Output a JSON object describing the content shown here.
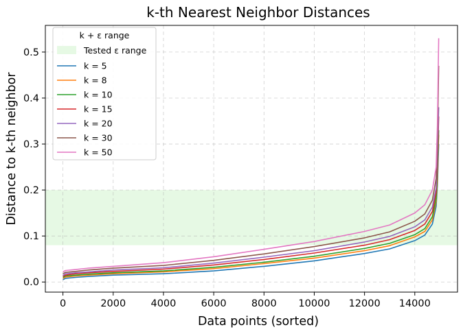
{
  "chart_data": {
    "type": "line",
    "title": "k-th Nearest Neighbor Distances",
    "xlabel": "Data points (sorted)",
    "ylabel": "Distance to k-th neighbor",
    "xlim": [
      -700,
      15700
    ],
    "ylim": [
      -0.022,
      0.558
    ],
    "xticks": [
      0,
      2000,
      4000,
      6000,
      8000,
      10000,
      12000,
      14000
    ],
    "yticks": [
      0.0,
      0.1,
      0.2,
      0.3,
      0.4,
      0.5
    ],
    "ytick_labels": [
      "0.0",
      "0.1",
      "0.2",
      "0.3",
      "0.4",
      "0.5"
    ],
    "grid": true,
    "legend_title": "k + ε range",
    "legend_position": "top-left",
    "band": {
      "name": "Tested ε range",
      "y_range": [
        0.08,
        0.2
      ],
      "color": "#e6f9e4"
    },
    "series": [
      {
        "name": "k = 5",
        "color": "#1f77b4",
        "x": [
          0,
          100,
          500,
          1000,
          2000,
          4000,
          6000,
          8000,
          10000,
          12000,
          13000,
          14000,
          14400,
          14700,
          14850,
          14900,
          14950
        ],
        "y": [
          0.005,
          0.008,
          0.01,
          0.012,
          0.015,
          0.018,
          0.024,
          0.034,
          0.046,
          0.062,
          0.072,
          0.09,
          0.102,
          0.126,
          0.165,
          0.21,
          0.3
        ]
      },
      {
        "name": "k = 8",
        "color": "#ff7f0e",
        "x": [
          0,
          100,
          500,
          1000,
          2000,
          4000,
          6000,
          8000,
          10000,
          12000,
          13000,
          14000,
          14400,
          14700,
          14850,
          14900,
          14950
        ],
        "y": [
          0.008,
          0.011,
          0.013,
          0.015,
          0.018,
          0.022,
          0.029,
          0.04,
          0.052,
          0.068,
          0.079,
          0.098,
          0.11,
          0.135,
          0.175,
          0.22,
          0.32
        ]
      },
      {
        "name": "k = 10",
        "color": "#2ca02c",
        "x": [
          0,
          100,
          500,
          1000,
          2000,
          4000,
          6000,
          8000,
          10000,
          12000,
          13000,
          14000,
          14400,
          14700,
          14850,
          14900,
          14950
        ],
        "y": [
          0.01,
          0.013,
          0.015,
          0.017,
          0.02,
          0.024,
          0.032,
          0.043,
          0.056,
          0.073,
          0.084,
          0.103,
          0.116,
          0.142,
          0.182,
          0.23,
          0.33
        ]
      },
      {
        "name": "k = 15",
        "color": "#d62728",
        "x": [
          0,
          100,
          500,
          1000,
          2000,
          4000,
          6000,
          8000,
          10000,
          12000,
          13000,
          14000,
          14400,
          14700,
          14850,
          14900,
          14950
        ],
        "y": [
          0.012,
          0.015,
          0.018,
          0.02,
          0.023,
          0.028,
          0.037,
          0.049,
          0.063,
          0.08,
          0.092,
          0.112,
          0.126,
          0.153,
          0.195,
          0.25,
          0.36
        ]
      },
      {
        "name": "k = 20",
        "color": "#9467bd",
        "x": [
          0,
          100,
          500,
          1000,
          2000,
          4000,
          6000,
          8000,
          10000,
          12000,
          13000,
          14000,
          14400,
          14700,
          14850,
          14900,
          14950
        ],
        "y": [
          0.014,
          0.018,
          0.02,
          0.022,
          0.026,
          0.031,
          0.041,
          0.054,
          0.068,
          0.087,
          0.099,
          0.12,
          0.135,
          0.163,
          0.205,
          0.27,
          0.38
        ]
      },
      {
        "name": "k = 30",
        "color": "#8c564b",
        "x": [
          0,
          100,
          500,
          1000,
          2000,
          4000,
          6000,
          8000,
          10000,
          12000,
          13000,
          14000,
          14400,
          14700,
          14850,
          14900,
          14950
        ],
        "y": [
          0.018,
          0.021,
          0.023,
          0.026,
          0.03,
          0.036,
          0.047,
          0.061,
          0.077,
          0.096,
          0.109,
          0.132,
          0.148,
          0.178,
          0.225,
          0.3,
          0.47
        ]
      },
      {
        "name": "k = 50",
        "color": "#e377c2",
        "x": [
          0,
          100,
          500,
          1000,
          2000,
          4000,
          6000,
          8000,
          10000,
          12000,
          13000,
          14000,
          14400,
          14700,
          14850,
          14900,
          14950
        ],
        "y": [
          0.022,
          0.025,
          0.027,
          0.03,
          0.034,
          0.042,
          0.055,
          0.071,
          0.088,
          0.11,
          0.124,
          0.15,
          0.168,
          0.2,
          0.25,
          0.34,
          0.53
        ]
      }
    ]
  }
}
